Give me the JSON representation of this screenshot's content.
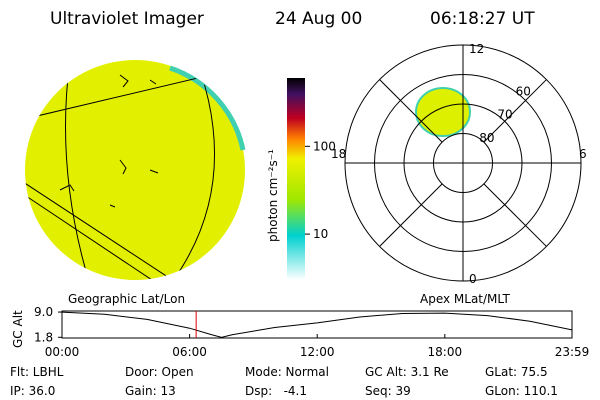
{
  "header": {
    "title": "Ultraviolet Imager",
    "date": "24 Aug 00",
    "time": "06:18:27 UT"
  },
  "colorbar": {
    "label": "photon cm⁻²s⁻¹",
    "range": [
      3,
      600
    ],
    "log": true,
    "ticks": [
      100,
      10
    ]
  },
  "polar": {
    "mlt_ticks": [
      12,
      18,
      6,
      0
    ],
    "rings": [
      60,
      70,
      80
    ],
    "rlim": [
      90,
      50
    ]
  },
  "plot": {
    "left_label": "Geographic Lat/Lon",
    "right_label": "Apex MLat/MLT",
    "ylabel": "GC Alt",
    "ylim": [
      1.6,
      9.3
    ],
    "yticks": [
      {
        "value": 9.0,
        "label": "9.0"
      },
      {
        "value": 1.8,
        "label": "1.8"
      }
    ],
    "xlim": [
      0,
      23.98
    ],
    "xticks": [
      {
        "value": 0,
        "label": "00:00"
      },
      {
        "value": 6,
        "label": "06:00"
      },
      {
        "value": 12,
        "label": "12:00"
      },
      {
        "value": 18,
        "label": "18:00"
      },
      {
        "value": 23.98,
        "label": "23:59"
      }
    ],
    "series": {
      "x": [
        0,
        2,
        4,
        6,
        7,
        7.5,
        8,
        10,
        12,
        14,
        16,
        18,
        20,
        22,
        23.98
      ],
      "y": [
        9.0,
        8.4,
        6.9,
        4.4,
        2.6,
        1.8,
        2.5,
        4.6,
        5.9,
        7.6,
        8.6,
        8.7,
        8.0,
        6.4,
        3.9
      ]
    },
    "marker": 6.3075
  },
  "status": [
    [
      "Flt: LBHL",
      "Door: Open",
      "Mode: Normal",
      "GC Alt: 3.1 Re",
      "GLat: 75.5"
    ],
    [
      "IP: 36.0",
      "Gain: 13",
      "Dsp:   -4.1",
      "Seq: 39",
      "GLon: 110.1"
    ]
  ]
}
